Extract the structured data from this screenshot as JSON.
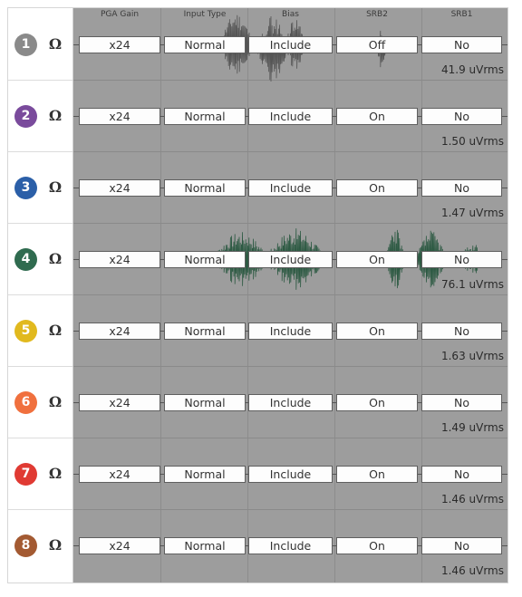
{
  "headers": [
    "PGA Gain",
    "Input Type",
    "Bias",
    "SRB2",
    "SRB1"
  ],
  "ohm_symbol": "Ω",
  "channels": [
    {
      "label": "1",
      "color": "#8a8a8a",
      "gain": "x24",
      "input_type": "Normal",
      "bias": "Include",
      "srb2": "Off",
      "srb1": "No",
      "rms": "41.9 uVrms"
    },
    {
      "label": "2",
      "color": "#7a4b9c",
      "gain": "x24",
      "input_type": "Normal",
      "bias": "Include",
      "srb2": "On",
      "srb1": "No",
      "rms": "1.50 uVrms"
    },
    {
      "label": "3",
      "color": "#2b5fa8",
      "gain": "x24",
      "input_type": "Normal",
      "bias": "Include",
      "srb2": "On",
      "srb1": "No",
      "rms": "1.47 uVrms"
    },
    {
      "label": "4",
      "color": "#2f6b4f",
      "gain": "x24",
      "input_type": "Normal",
      "bias": "Include",
      "srb2": "On",
      "srb1": "No",
      "rms": "76.1 uVrms"
    },
    {
      "label": "5",
      "color": "#e1b91e",
      "gain": "x24",
      "input_type": "Normal",
      "bias": "Include",
      "srb2": "On",
      "srb1": "No",
      "rms": "1.63 uVrms"
    },
    {
      "label": "6",
      "color": "#f0703e",
      "gain": "x24",
      "input_type": "Normal",
      "bias": "Include",
      "srb2": "On",
      "srb1": "No",
      "rms": "1.49 uVrms"
    },
    {
      "label": "7",
      "color": "#e03a33",
      "gain": "x24",
      "input_type": "Normal",
      "bias": "Include",
      "srb2": "On",
      "srb1": "No",
      "rms": "1.46 uVrms"
    },
    {
      "label": "8",
      "color": "#a35a32",
      "gain": "x24",
      "input_type": "Normal",
      "bias": "Include",
      "srb2": "On",
      "srb1": "No",
      "rms": "1.46 uVrms"
    }
  ],
  "wave_colors": {
    "channel_1": "#555555",
    "channel_4": "#2d5a43"
  }
}
